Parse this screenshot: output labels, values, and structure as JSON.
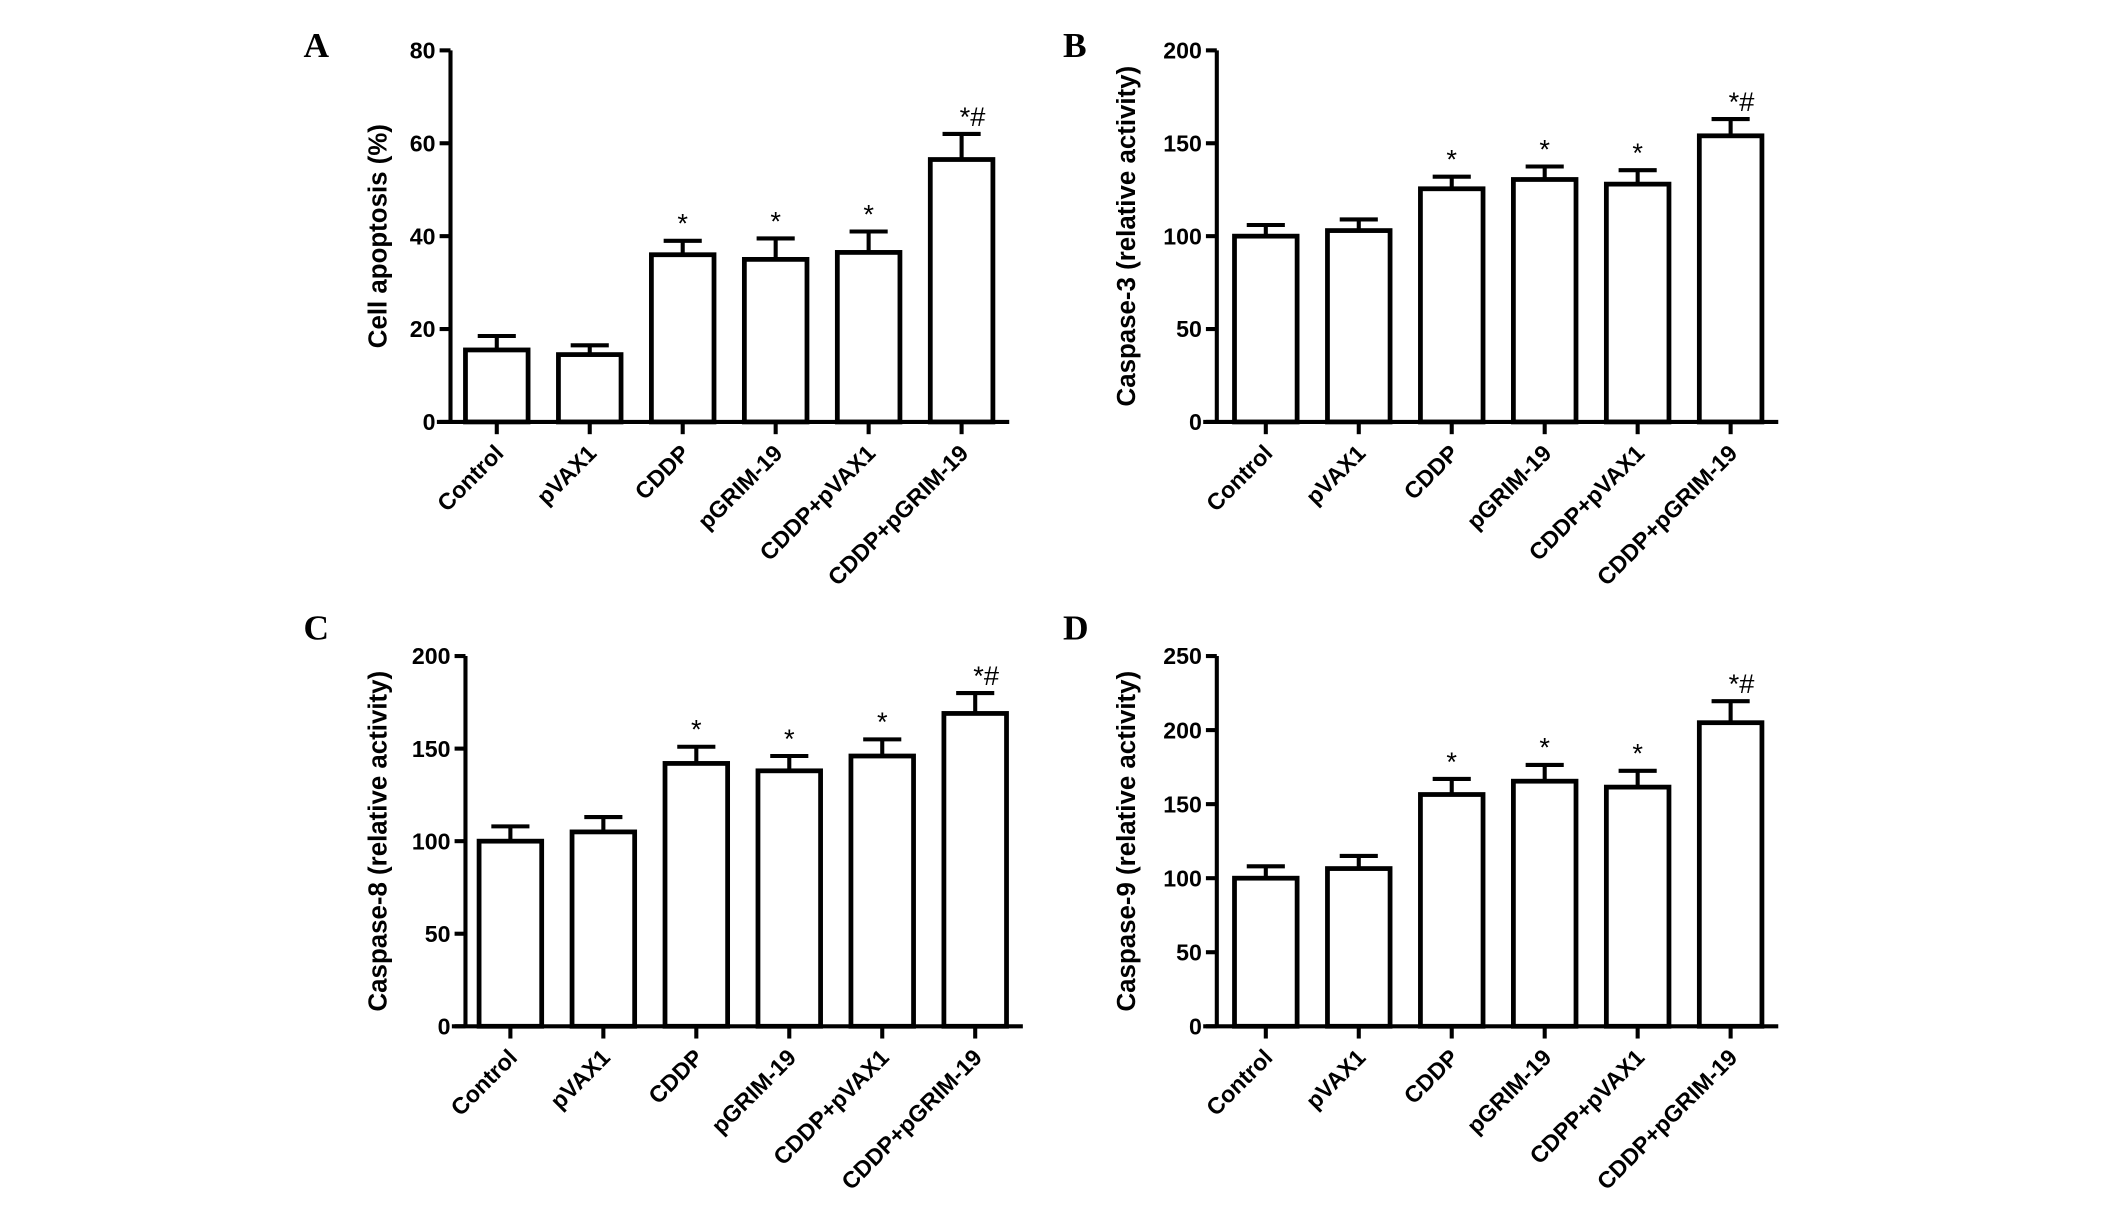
{
  "chart_data": [
    {
      "type": "bar",
      "panel": "A",
      "ylabel": "Cell apoptosis (%)",
      "ylim": [
        0,
        80
      ],
      "yticks": [
        0,
        20,
        40,
        60,
        80
      ],
      "categories": [
        "Control",
        "pVAX1",
        "CDDP",
        "pGRIM-19",
        "CDDP+pVAX1",
        "CDDP+pGRIM-19"
      ],
      "values": [
        15.5,
        14.5,
        36,
        35,
        36.5,
        56.5
      ],
      "error_upper": [
        18.5,
        16.5,
        39,
        39.5,
        41,
        62
      ],
      "annotations": [
        "",
        "",
        "*",
        "*",
        "*",
        "*#"
      ]
    },
    {
      "type": "bar",
      "panel": "B",
      "ylabel": "Caspase-3  (relative activity)",
      "ylim": [
        0,
        200
      ],
      "yticks": [
        0,
        50,
        100,
        150,
        200
      ],
      "categories": [
        "Control",
        "pVAX1",
        "CDDP",
        "pGRIM-19",
        "CDDP+pVAX1",
        "CDDP+pGRIM-19"
      ],
      "values": [
        100,
        103,
        125.5,
        130.5,
        128,
        154
      ],
      "error_upper": [
        106,
        109,
        132,
        137.5,
        135.5,
        163
      ],
      "annotations": [
        "",
        "",
        "*",
        "*",
        "*",
        "*#"
      ]
    },
    {
      "type": "bar",
      "panel": "C",
      "ylabel": "Caspase-8  (relative activity)",
      "ylim": [
        0,
        200
      ],
      "yticks": [
        0,
        50,
        100,
        150,
        200
      ],
      "categories": [
        "Control",
        "pVAX1",
        "CDDP",
        "pGRIM-19",
        "CDDP+pVAX1",
        "CDDP+pGRIM-19"
      ],
      "values": [
        100,
        105,
        142,
        138,
        146,
        169
      ],
      "error_upper": [
        108,
        113,
        151,
        146,
        155,
        180
      ],
      "annotations": [
        "",
        "",
        "*",
        "*",
        "*",
        "*#"
      ]
    },
    {
      "type": "bar",
      "panel": "D",
      "ylabel": "Caspase-9  (relative activity)",
      "ylim": [
        0,
        250
      ],
      "yticks": [
        0,
        50,
        100,
        150,
        200,
        250
      ],
      "categories": [
        "Control",
        "pVAX1",
        "CDDP",
        "pGRIM-19",
        "CDPP+pVAX1",
        "CDDP+pGRIM-19"
      ],
      "values": [
        100,
        106.5,
        156.5,
        165.5,
        161.5,
        205
      ],
      "error_upper": [
        108,
        115,
        167,
        176.5,
        172.5,
        219.5
      ],
      "annotations": [
        "",
        "",
        "*",
        "*",
        "*",
        "*#"
      ]
    }
  ]
}
